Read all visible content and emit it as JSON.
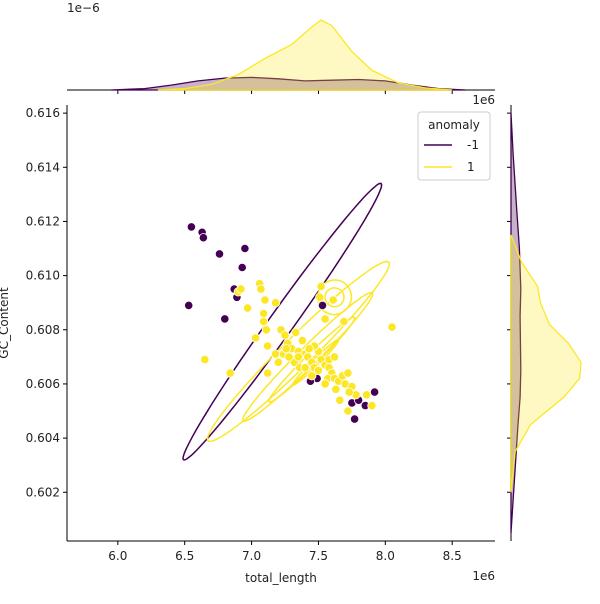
{
  "chart_data": {
    "type": "scatter",
    "title": "",
    "xlabel": "total_length",
    "ylabel": "GC_Content",
    "x_offset_label": "1e6",
    "y_offset_label": "1e6",
    "top_marginal_offset_label": "1e−6",
    "xlim": [
      5.62,
      8.82
    ],
    "ylim": [
      0.6002,
      0.6163
    ],
    "x_ticks": [
      6.0,
      6.5,
      7.0,
      7.5,
      8.0,
      8.5
    ],
    "x_tick_labels": [
      "6.0",
      "6.5",
      "7.0",
      "7.5",
      "8.0",
      "8.5"
    ],
    "y_ticks": [
      0.602,
      0.604,
      0.606,
      0.608,
      0.61,
      0.612,
      0.614,
      0.616
    ],
    "y_tick_labels": [
      "0.602",
      "0.604",
      "0.606",
      "0.608",
      "0.610",
      "0.612",
      "0.614",
      "0.616"
    ],
    "grid": false,
    "legend": {
      "title": "anomaly",
      "position": "top-right",
      "entries": [
        "-1",
        "1"
      ]
    },
    "colors": {
      "-1": "#440154",
      "1": "#fde725"
    },
    "series": [
      {
        "name": "-1",
        "points": [
          [
            6.55,
            0.6118
          ],
          [
            6.63,
            0.6116
          ],
          [
            6.64,
            0.6114
          ],
          [
            6.76,
            0.6108
          ],
          [
            6.95,
            0.611
          ],
          [
            6.93,
            0.6103
          ],
          [
            6.87,
            0.6095
          ],
          [
            6.89,
            0.6092
          ],
          [
            6.53,
            0.6089
          ],
          [
            6.8,
            0.6084
          ],
          [
            7.53,
            0.6089
          ],
          [
            7.49,
            0.6062
          ],
          [
            7.44,
            0.6061
          ],
          [
            7.75,
            0.6053
          ],
          [
            7.8,
            0.6054
          ],
          [
            7.85,
            0.6052
          ],
          [
            7.92,
            0.6057
          ],
          [
            7.77,
            0.6047
          ]
        ]
      },
      {
        "name": "1",
        "points": [
          [
            6.65,
            0.6069
          ],
          [
            6.84,
            0.6064
          ],
          [
            6.9,
            0.6094
          ],
          [
            6.92,
            0.6095
          ],
          [
            6.97,
            0.6088
          ],
          [
            7.06,
            0.6097
          ],
          [
            7.07,
            0.6095
          ],
          [
            7.1,
            0.6091
          ],
          [
            7.18,
            0.609
          ],
          [
            7.09,
            0.6086
          ],
          [
            7.09,
            0.6083
          ],
          [
            7.03,
            0.6077
          ],
          [
            7.11,
            0.608
          ],
          [
            7.12,
            0.6074
          ],
          [
            7.22,
            0.608
          ],
          [
            7.18,
            0.6071
          ],
          [
            7.12,
            0.6064
          ],
          [
            7.2,
            0.6068
          ],
          [
            7.25,
            0.6078
          ],
          [
            7.27,
            0.6075
          ],
          [
            7.3,
            0.6073
          ],
          [
            7.24,
            0.6071
          ],
          [
            7.33,
            0.6079
          ],
          [
            7.35,
            0.6072
          ],
          [
            7.32,
            0.6068
          ],
          [
            7.38,
            0.6076
          ],
          [
            7.4,
            0.6071
          ],
          [
            7.42,
            0.607
          ],
          [
            7.45,
            0.6068
          ],
          [
            7.47,
            0.6066
          ],
          [
            7.5,
            0.6072
          ],
          [
            7.52,
            0.6069
          ],
          [
            7.55,
            0.6067
          ],
          [
            7.58,
            0.6066
          ],
          [
            7.6,
            0.6064
          ],
          [
            7.57,
            0.6062
          ],
          [
            7.5,
            0.6065
          ],
          [
            7.62,
            0.6062
          ],
          [
            7.65,
            0.6061
          ],
          [
            7.68,
            0.6063
          ],
          [
            7.7,
            0.606
          ],
          [
            7.72,
            0.6064
          ],
          [
            7.63,
            0.6058
          ],
          [
            7.55,
            0.606
          ],
          [
            7.45,
            0.6063
          ],
          [
            7.36,
            0.6066
          ],
          [
            7.4,
            0.6066
          ],
          [
            7.28,
            0.607
          ],
          [
            7.75,
            0.6059
          ],
          [
            7.78,
            0.6056
          ],
          [
            7.66,
            0.6054
          ],
          [
            7.72,
            0.605
          ],
          [
            7.86,
            0.6056
          ],
          [
            7.9,
            0.6052
          ],
          [
            7.73,
            0.6057
          ],
          [
            7.52,
            0.6096
          ],
          [
            7.51,
            0.6092
          ],
          [
            7.55,
            0.6084
          ],
          [
            7.61,
            0.6091
          ],
          [
            7.69,
            0.6083
          ],
          [
            8.05,
            0.6081
          ],
          [
            7.47,
            0.6074
          ],
          [
            7.43,
            0.6073
          ],
          [
            7.35,
            0.607
          ],
          [
            7.26,
            0.6073
          ],
          [
            7.58,
            0.6069
          ],
          [
            7.62,
            0.607
          ]
        ]
      }
    ],
    "top_marginal": {
      "series": [
        {
          "name": "-1",
          "peak": 0.18,
          "x": [
            5.95,
            6.2,
            6.4,
            6.6,
            6.8,
            7.0,
            7.2,
            7.4,
            7.6,
            7.8,
            8.0,
            8.2,
            8.4,
            8.6
          ],
          "density": [
            0.0,
            0.02,
            0.07,
            0.13,
            0.17,
            0.18,
            0.16,
            0.13,
            0.14,
            0.15,
            0.13,
            0.07,
            0.02,
            0.0
          ]
        },
        {
          "name": "1",
          "peak": 1.0,
          "x": [
            6.3,
            6.5,
            6.7,
            6.9,
            7.1,
            7.3,
            7.45,
            7.52,
            7.6,
            7.75,
            7.9,
            8.1,
            8.3,
            8.5
          ],
          "density": [
            0.0,
            0.02,
            0.08,
            0.22,
            0.45,
            0.65,
            0.9,
            1.0,
            0.92,
            0.55,
            0.28,
            0.1,
            0.03,
            0.0
          ]
        }
      ]
    },
    "right_marginal": {
      "series": [
        {
          "name": "-1",
          "y": [
            0.6005,
            0.6025,
            0.6045,
            0.6055,
            0.6065,
            0.6085,
            0.6095,
            0.611,
            0.6125,
            0.6145,
            0.616
          ],
          "density": [
            0.0,
            0.05,
            0.1,
            0.13,
            0.14,
            0.13,
            0.14,
            0.12,
            0.08,
            0.03,
            0.0
          ]
        },
        {
          "name": "1",
          "y": [
            0.602,
            0.6035,
            0.6045,
            0.6055,
            0.6062,
            0.6068,
            0.6075,
            0.6082,
            0.609,
            0.6096,
            0.6105,
            0.6115
          ],
          "density": [
            0.0,
            0.06,
            0.28,
            0.75,
            0.98,
            1.0,
            0.82,
            0.55,
            0.42,
            0.38,
            0.15,
            0.0
          ]
        }
      ]
    },
    "contours": [
      {
        "series": "-1",
        "cx": 7.23,
        "cy": 0.6083,
        "rx": 1.27,
        "ry": 0.00045,
        "angle": -0.95
      },
      {
        "series": "1",
        "cx": 7.35,
        "cy": 0.6072,
        "rx": 0.95,
        "ry": 0.00055,
        "angle": -0.78
      },
      {
        "series": "1",
        "cx": 7.42,
        "cy": 0.607,
        "rx": 0.68,
        "ry": 0.00035,
        "angle": -0.78
      },
      {
        "series": "1",
        "cx": 7.45,
        "cy": 0.6069,
        "rx": 0.45,
        "ry": 0.00022,
        "angle": -0.78
      },
      {
        "series": "1",
        "cx": 7.48,
        "cy": 0.6068,
        "rx": 0.24,
        "ry": 0.00012,
        "angle": -0.78
      },
      {
        "series": "1",
        "cx": 7.62,
        "cy": 0.6092,
        "rx": 0.13,
        "ry": 0.00062,
        "angle": -1.2
      },
      {
        "series": "1",
        "cx": 7.62,
        "cy": 0.6092,
        "rx": 0.07,
        "ry": 0.00035,
        "angle": -1.2
      }
    ]
  }
}
